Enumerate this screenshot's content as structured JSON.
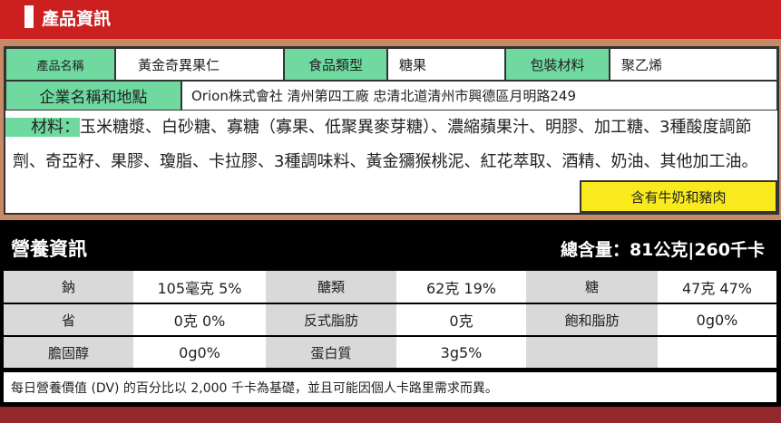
{
  "header": {
    "title": "產品資訊"
  },
  "product": {
    "name_label": "產品名稱",
    "name": "黃金奇異果仁",
    "type_label": "食品類型",
    "type": "糖果",
    "package_label": "包裝材料",
    "package": "聚乙烯",
    "company_label": "企業名稱和地點",
    "company": "Orion株式會社 清州第四工廠 忠清北道清州市興德區月明路249",
    "ingredients_label": "材料：",
    "ingredients": "玉米糖漿、白砂糖、寡糖（寡果、低聚異麥芽糖）、濃縮蘋果汁、明膠、加工糖、3種酸度調節劑、奇亞籽、果膠、瓊脂、卡拉膠、3種調味料、黃金獼猴桃泥、紅花萃取、酒精、奶油、其他加工油。",
    "allergen": "含有牛奶和豬肉"
  },
  "nutrition": {
    "title": "營養資訊",
    "total": "總含量：81公克|260千卡",
    "rows": [
      [
        {
          "l": "鈉",
          "v": "105毫克 5%"
        },
        {
          "l": "醣類",
          "v": "62克 19%"
        },
        {
          "l": "糖",
          "v": "47克 47%"
        }
      ],
      [
        {
          "l": "省",
          "v": "0克 0%"
        },
        {
          "l": "反式脂肪",
          "v": "0克"
        },
        {
          "l": "飽和脂肪",
          "v": "0g0%"
        }
      ],
      [
        {
          "l": "膽固醇",
          "v": "0g0%"
        },
        {
          "l": "蛋白質",
          "v": "3g5%"
        },
        {
          "l": "",
          "v": ""
        }
      ]
    ],
    "footnote": "每日營養價值 (DV) 的百分比以 2,000 千卡為基礎，並且可能因個人卡路里需求而異。"
  },
  "colors": {
    "header_red": "#cc1f1f",
    "label_green": "#6fd9a0",
    "allergen_yellow": "#f8ea1c"
  }
}
